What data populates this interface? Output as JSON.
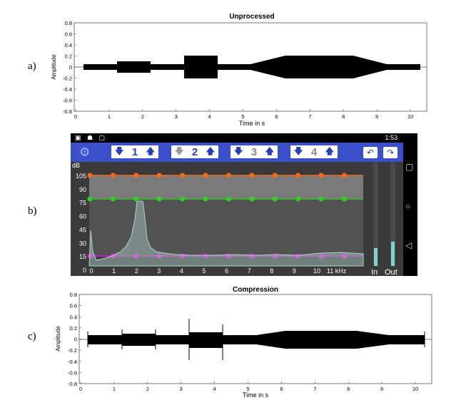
{
  "labels": {
    "a": "a)",
    "b": "b)",
    "c": "c)"
  },
  "plot_a": {
    "title": "Unprocessed",
    "xlabel": "Time in s",
    "ylabel": "Amplitude",
    "yticks": [
      "0.8",
      "0.6",
      "0.4",
      "0.2",
      "0",
      "-0.2",
      "-0.4",
      "-0.6",
      "-0.8"
    ],
    "xticks": [
      "0",
      "1",
      "2",
      "3",
      "4",
      "5",
      "6",
      "7",
      "8",
      "9",
      "10"
    ]
  },
  "plot_c": {
    "title": "Compression",
    "xlabel": "Time in s",
    "ylabel": "Amplitude",
    "yticks": [
      "0.8",
      "0.6",
      "0.4",
      "0.2",
      "0",
      "-0.2",
      "-0.4",
      "-0.6",
      "-0.8"
    ],
    "xticks": [
      "0",
      "1",
      "2",
      "3",
      "4",
      "5",
      "6",
      "7",
      "8",
      "9",
      "10"
    ]
  },
  "app": {
    "status_time": "1:53",
    "status_icons": "▣ ☗ ▢",
    "bands": [
      "1",
      "2",
      "3",
      "4"
    ],
    "db_label": "dB",
    "db_ticks": [
      "105",
      "90",
      "75",
      "60",
      "45",
      "30",
      "15",
      "0"
    ],
    "freq_ticks": [
      "0",
      "1",
      "2",
      "3",
      "4",
      "5",
      "6",
      "7",
      "8",
      "9",
      "10",
      "11 kHz"
    ],
    "meter_in": "In",
    "meter_out": "Out",
    "colors": {
      "toolbar": "#3c4fcb",
      "orange": "#f36a1c",
      "green": "#39c829",
      "magenta": "#e21ce0",
      "spectrum": "#8fb8b0",
      "meter": "#7fd3d0"
    },
    "icons": {
      "settings": "gear-icon",
      "undo": "undo-icon",
      "redo": "redo-icon",
      "nav_square": "square-icon",
      "nav_home": "circle-icon",
      "nav_back": "triangle-back-icon"
    }
  }
}
